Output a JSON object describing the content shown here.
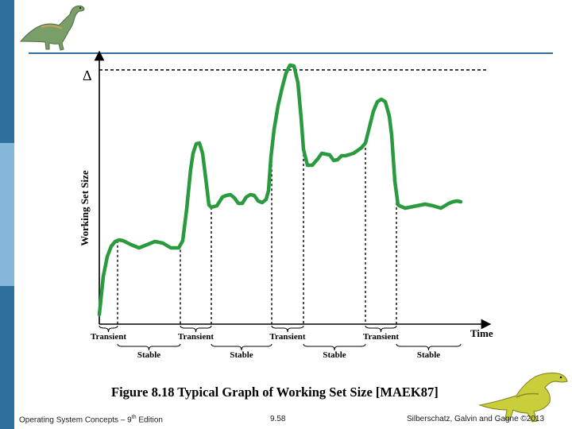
{
  "colors": {
    "curve": "#2a9a3e",
    "accent": "#2e6f9e",
    "accent_light": "#85b7db"
  },
  "icons": {
    "top_logo": "dinosaur-icon",
    "bottom_logo": "dinosaur-icon"
  },
  "chart_data": {
    "type": "line",
    "title": "Figure 8.18 Typical Graph of Working Set Size [MAEK87]",
    "ylabel": "Working Set Size",
    "xlabel": "Time",
    "max_marker": "Δ",
    "grid": false,
    "phases": [
      {
        "label": "Transient",
        "x_start": 0,
        "x_end": 23
      },
      {
        "label": "Stable",
        "x_start": 23,
        "x_end": 102
      },
      {
        "label": "Transient",
        "x_start": 102,
        "x_end": 141
      },
      {
        "label": "Stable",
        "x_start": 141,
        "x_end": 217
      },
      {
        "label": "Transient",
        "x_start": 217,
        "x_end": 257
      },
      {
        "label": "Stable",
        "x_start": 257,
        "x_end": 335
      },
      {
        "label": "Transient",
        "x_start": 335,
        "x_end": 374
      },
      {
        "label": "Stable",
        "x_start": 374,
        "x_end": 455
      }
    ],
    "xlim": [
      0,
      480
    ],
    "ylim": [
      0,
      330
    ],
    "series": [
      {
        "x": [
          0,
          5,
          10,
          15,
          20,
          25,
          30,
          40,
          50,
          60,
          70,
          80,
          90,
          100,
          105,
          110,
          115,
          118,
          122,
          126,
          130,
          135,
          138,
          141,
          148,
          155,
          160,
          165,
          170,
          175,
          180,
          185,
          190,
          195,
          200,
          205,
          210,
          213,
          216,
          220,
          225,
          230,
          235,
          240,
          245,
          250,
          254,
          257,
          262,
          268,
          275,
          280,
          285,
          290,
          295,
          300,
          305,
          310,
          320,
          330,
          335,
          340,
          345,
          350,
          355,
          360,
          365,
          368,
          372,
          376,
          380,
          385,
          390,
          400,
          410,
          420,
          430,
          440,
          445,
          450,
          455
        ],
        "y": [
          12,
          60,
          85,
          98,
          104,
          106,
          105,
          100,
          96,
          100,
          104,
          102,
          96,
          96,
          105,
          145,
          195,
          215,
          227,
          228,
          215,
          175,
          150,
          147,
          149,
          160,
          162,
          163,
          159,
          152,
          152,
          160,
          163,
          162,
          155,
          153,
          157,
          168,
          210,
          245,
          275,
          297,
          316,
          326,
          325,
          304,
          260,
          220,
          200,
          200,
          208,
          215,
          214,
          213,
          206,
          207,
          212,
          212,
          215,
          222,
          228,
          248,
          268,
          280,
          283,
          280,
          262,
          238,
          180,
          150,
          148,
          146,
          147,
          149,
          151,
          149,
          146,
          152,
          154,
          155,
          154
        ]
      }
    ]
  },
  "footer": {
    "left": "Operating System Concepts – 9",
    "left_sup": "th",
    "left_tail": " Edition",
    "center": "9.58",
    "right": "Silberschatz, Galvin and Gagne ©2013"
  }
}
